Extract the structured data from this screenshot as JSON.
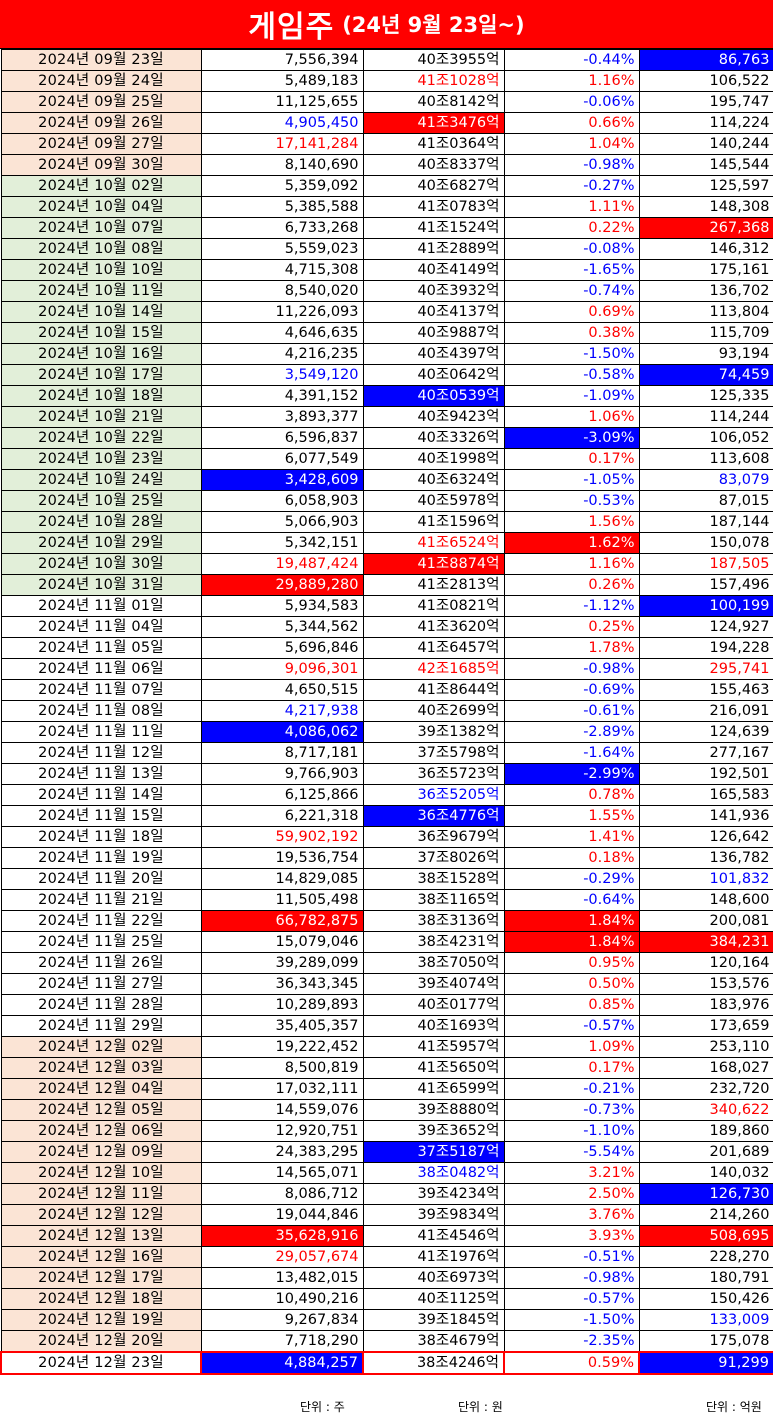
{
  "header": {
    "title": "게임주",
    "subtitle": "(24년 9월 23일~)"
  },
  "colors": {
    "red": "#ff0000",
    "blue": "#0000ff",
    "peach": "#fbe4d5",
    "green": "#e2efd9"
  },
  "rows": [
    {
      "date": "2024년 09월 23일",
      "volume": "7,556,394",
      "cap": "40조3955억",
      "change": "-0.44%",
      "amount": "86,763",
      "band": "peach",
      "styles": [
        "",
        "",
        "",
        "blue",
        "bgB"
      ]
    },
    {
      "date": "2024년 09월 24일",
      "volume": "5,489,183",
      "cap": "41조1028억",
      "change": "1.16%",
      "amount": "106,522",
      "band": "peach",
      "styles": [
        "",
        "",
        "red",
        "red",
        ""
      ]
    },
    {
      "date": "2024년 09월 25일",
      "volume": "11,125,655",
      "cap": "40조8142억",
      "change": "-0.06%",
      "amount": "195,747",
      "band": "peach",
      "styles": [
        "",
        "",
        "",
        "blue",
        ""
      ]
    },
    {
      "date": "2024년 09월 26일",
      "volume": "4,905,450",
      "cap": "41조3476억",
      "change": "0.66%",
      "amount": "114,224",
      "band": "peach",
      "styles": [
        "",
        "blue",
        "bgR",
        "red",
        ""
      ]
    },
    {
      "date": "2024년 09월 27일",
      "volume": "17,141,284",
      "cap": "41조0364억",
      "change": "1.04%",
      "amount": "140,244",
      "band": "peach",
      "styles": [
        "",
        "red",
        "",
        "red",
        ""
      ]
    },
    {
      "date": "2024년 09월 30일",
      "volume": "8,140,690",
      "cap": "40조8337억",
      "change": "-0.98%",
      "amount": "145,544",
      "band": "peach",
      "styles": [
        "",
        "",
        "",
        "blue",
        ""
      ]
    },
    {
      "date": "2024년 10월 02일",
      "volume": "5,359,092",
      "cap": "40조6827억",
      "change": "-0.27%",
      "amount": "125,597",
      "band": "green",
      "styles": [
        "",
        "",
        "",
        "blue",
        ""
      ]
    },
    {
      "date": "2024년 10월 04일",
      "volume": "5,385,588",
      "cap": "41조0783억",
      "change": "1.11%",
      "amount": "148,308",
      "band": "green",
      "styles": [
        "",
        "",
        "",
        "red",
        ""
      ]
    },
    {
      "date": "2024년 10월 07일",
      "volume": "6,733,268",
      "cap": "41조1524억",
      "change": "0.22%",
      "amount": "267,368",
      "band": "green",
      "styles": [
        "",
        "",
        "",
        "red",
        "bgR"
      ]
    },
    {
      "date": "2024년 10월 08일",
      "volume": "5,559,023",
      "cap": "41조2889억",
      "change": "-0.08%",
      "amount": "146,312",
      "band": "green",
      "styles": [
        "",
        "",
        "",
        "blue",
        ""
      ]
    },
    {
      "date": "2024년 10월 10일",
      "volume": "4,715,308",
      "cap": "40조4149억",
      "change": "-1.65%",
      "amount": "175,161",
      "band": "green",
      "styles": [
        "",
        "",
        "",
        "blue",
        ""
      ]
    },
    {
      "date": "2024년 10월 11일",
      "volume": "8,540,020",
      "cap": "40조3932억",
      "change": "-0.74%",
      "amount": "136,702",
      "band": "green",
      "styles": [
        "",
        "",
        "",
        "blue",
        ""
      ]
    },
    {
      "date": "2024년 10월 14일",
      "volume": "11,226,093",
      "cap": "40조4137억",
      "change": "0.69%",
      "amount": "113,804",
      "band": "green",
      "styles": [
        "",
        "",
        "",
        "red",
        ""
      ]
    },
    {
      "date": "2024년 10월 15일",
      "volume": "4,646,635",
      "cap": "40조9887억",
      "change": "0.38%",
      "amount": "115,709",
      "band": "green",
      "styles": [
        "",
        "",
        "",
        "red",
        ""
      ]
    },
    {
      "date": "2024년 10월 16일",
      "volume": "4,216,235",
      "cap": "40조4397억",
      "change": "-1.50%",
      "amount": "93,194",
      "band": "green",
      "styles": [
        "",
        "",
        "",
        "blue",
        ""
      ]
    },
    {
      "date": "2024년 10월 17일",
      "volume": "3,549,120",
      "cap": "40조0642억",
      "change": "-0.58%",
      "amount": "74,459",
      "band": "green",
      "styles": [
        "",
        "blue",
        "",
        "blue",
        "bgB"
      ]
    },
    {
      "date": "2024년 10월 18일",
      "volume": "4,391,152",
      "cap": "40조0539억",
      "change": "-1.09%",
      "amount": "125,335",
      "band": "green",
      "styles": [
        "",
        "",
        "bgB",
        "blue",
        ""
      ]
    },
    {
      "date": "2024년 10월 21일",
      "volume": "3,893,377",
      "cap": "40조9423억",
      "change": "1.06%",
      "amount": "114,244",
      "band": "green",
      "styles": [
        "",
        "",
        "",
        "red",
        ""
      ]
    },
    {
      "date": "2024년 10월 22일",
      "volume": "6,596,837",
      "cap": "40조3326억",
      "change": "-3.09%",
      "amount": "106,052",
      "band": "green",
      "styles": [
        "",
        "",
        "",
        "bgB",
        ""
      ]
    },
    {
      "date": "2024년 10월 23일",
      "volume": "6,077,549",
      "cap": "40조1998억",
      "change": "0.17%",
      "amount": "113,608",
      "band": "green",
      "styles": [
        "",
        "",
        "",
        "red",
        ""
      ]
    },
    {
      "date": "2024년 10월 24일",
      "volume": "3,428,609",
      "cap": "40조6324억",
      "change": "-1.05%",
      "amount": "83,079",
      "band": "green",
      "styles": [
        "",
        "bgB",
        "",
        "blue",
        "blue"
      ]
    },
    {
      "date": "2024년 10월 25일",
      "volume": "6,058,903",
      "cap": "40조5978억",
      "change": "-0.53%",
      "amount": "87,015",
      "band": "green",
      "styles": [
        "",
        "",
        "",
        "blue",
        ""
      ]
    },
    {
      "date": "2024년 10월 28일",
      "volume": "5,066,903",
      "cap": "41조1596억",
      "change": "1.56%",
      "amount": "187,144",
      "band": "green",
      "styles": [
        "",
        "",
        "",
        "red",
        ""
      ]
    },
    {
      "date": "2024년 10월 29일",
      "volume": "5,342,151",
      "cap": "41조6524억",
      "change": "1.62%",
      "amount": "150,078",
      "band": "green",
      "styles": [
        "",
        "",
        "red",
        "bgR",
        ""
      ]
    },
    {
      "date": "2024년 10월 30일",
      "volume": "19,487,424",
      "cap": "41조8874억",
      "change": "1.16%",
      "amount": "187,505",
      "band": "green",
      "styles": [
        "",
        "red",
        "bgR",
        "red",
        "red"
      ]
    },
    {
      "date": "2024년 10월 31일",
      "volume": "29,889,280",
      "cap": "41조2813억",
      "change": "0.26%",
      "amount": "157,496",
      "band": "green",
      "styles": [
        "",
        "bgR",
        "",
        "red",
        ""
      ]
    },
    {
      "date": "2024년 11월 01일",
      "volume": "5,934,583",
      "cap": "41조0821억",
      "change": "-1.12%",
      "amount": "100,199",
      "band": "white",
      "styles": [
        "",
        "",
        "",
        "blue",
        "bgB"
      ]
    },
    {
      "date": "2024년 11월 04일",
      "volume": "5,344,562",
      "cap": "41조3620억",
      "change": "0.25%",
      "amount": "124,927",
      "band": "white",
      "styles": [
        "",
        "",
        "",
        "red",
        ""
      ]
    },
    {
      "date": "2024년 11월 05일",
      "volume": "5,696,846",
      "cap": "41조6457억",
      "change": "1.78%",
      "amount": "194,228",
      "band": "white",
      "styles": [
        "",
        "",
        "",
        "red",
        ""
      ]
    },
    {
      "date": "2024년 11월 06일",
      "volume": "9,096,301",
      "cap": "42조1685억",
      "change": "-0.98%",
      "amount": "295,741",
      "band": "white",
      "styles": [
        "",
        "red",
        "red",
        "blue",
        "red"
      ]
    },
    {
      "date": "2024년 11월 07일",
      "volume": "4,650,515",
      "cap": "41조8644억",
      "change": "-0.69%",
      "amount": "155,463",
      "band": "white",
      "styles": [
        "",
        "",
        "",
        "blue",
        ""
      ]
    },
    {
      "date": "2024년 11월 08일",
      "volume": "4,217,938",
      "cap": "40조2699억",
      "change": "-0.61%",
      "amount": "216,091",
      "band": "white",
      "styles": [
        "",
        "blue",
        "",
        "blue",
        ""
      ]
    },
    {
      "date": "2024년 11월 11일",
      "volume": "4,086,062",
      "cap": "39조1382억",
      "change": "-2.89%",
      "amount": "124,639",
      "band": "white",
      "styles": [
        "",
        "bgB",
        "",
        "blue",
        ""
      ]
    },
    {
      "date": "2024년 11월 12일",
      "volume": "8,717,181",
      "cap": "37조5798억",
      "change": "-1.64%",
      "amount": "277,167",
      "band": "white",
      "styles": [
        "",
        "",
        "",
        "blue",
        ""
      ]
    },
    {
      "date": "2024년 11월 13일",
      "volume": "9,766,903",
      "cap": "36조5723억",
      "change": "-2.99%",
      "amount": "192,501",
      "band": "white",
      "styles": [
        "",
        "",
        "",
        "bgB",
        ""
      ]
    },
    {
      "date": "2024년 11월 14일",
      "volume": "6,125,866",
      "cap": "36조5205억",
      "change": "0.78%",
      "amount": "165,583",
      "band": "white",
      "styles": [
        "",
        "",
        "blue",
        "red",
        ""
      ]
    },
    {
      "date": "2024년 11월 15일",
      "volume": "6,221,318",
      "cap": "36조4776억",
      "change": "1.55%",
      "amount": "141,936",
      "band": "white",
      "styles": [
        "",
        "",
        "bgB",
        "red",
        ""
      ]
    },
    {
      "date": "2024년 11월 18일",
      "volume": "59,902,192",
      "cap": "36조9679억",
      "change": "1.41%",
      "amount": "126,642",
      "band": "white",
      "styles": [
        "",
        "red",
        "",
        "red",
        ""
      ]
    },
    {
      "date": "2024년 11월 19일",
      "volume": "19,536,754",
      "cap": "37조8026억",
      "change": "0.18%",
      "amount": "136,782",
      "band": "white",
      "styles": [
        "",
        "",
        "",
        "red",
        ""
      ]
    },
    {
      "date": "2024년 11월 20일",
      "volume": "14,829,085",
      "cap": "38조1528억",
      "change": "-0.29%",
      "amount": "101,832",
      "band": "white",
      "styles": [
        "",
        "",
        "",
        "blue",
        "blue"
      ]
    },
    {
      "date": "2024년 11월 21일",
      "volume": "11,505,498",
      "cap": "38조1165억",
      "change": "-0.64%",
      "amount": "148,600",
      "band": "white",
      "styles": [
        "",
        "",
        "",
        "blue",
        ""
      ]
    },
    {
      "date": "2024년 11월 22일",
      "volume": "66,782,875",
      "cap": "38조3136억",
      "change": "1.84%",
      "amount": "200,081",
      "band": "white",
      "styles": [
        "",
        "bgR",
        "",
        "bgR",
        ""
      ]
    },
    {
      "date": "2024년 11월 25일",
      "volume": "15,079,046",
      "cap": "38조4231억",
      "change": "1.84%",
      "amount": "384,231",
      "band": "white",
      "styles": [
        "",
        "",
        "",
        "bgR",
        "bgR"
      ]
    },
    {
      "date": "2024년 11월 26일",
      "volume": "39,289,099",
      "cap": "38조7050억",
      "change": "0.95%",
      "amount": "120,164",
      "band": "white",
      "styles": [
        "",
        "",
        "",
        "red",
        ""
      ]
    },
    {
      "date": "2024년 11월 27일",
      "volume": "36,343,345",
      "cap": "39조4074억",
      "change": "0.50%",
      "amount": "153,576",
      "band": "white",
      "styles": [
        "",
        "",
        "",
        "red",
        ""
      ]
    },
    {
      "date": "2024년 11월 28일",
      "volume": "10,289,893",
      "cap": "40조0177억",
      "change": "0.85%",
      "amount": "183,976",
      "band": "white",
      "styles": [
        "",
        "",
        "",
        "red",
        ""
      ]
    },
    {
      "date": "2024년 11월 29일",
      "volume": "35,405,357",
      "cap": "40조1693억",
      "change": "-0.57%",
      "amount": "173,659",
      "band": "white",
      "styles": [
        "",
        "",
        "",
        "blue",
        ""
      ]
    },
    {
      "date": "2024년 12월 02일",
      "volume": "19,222,452",
      "cap": "41조5957억",
      "change": "1.09%",
      "amount": "253,110",
      "band": "peach",
      "styles": [
        "",
        "",
        "",
        "red",
        ""
      ]
    },
    {
      "date": "2024년 12월 03일",
      "volume": "8,500,819",
      "cap": "41조5650억",
      "change": "0.17%",
      "amount": "168,027",
      "band": "peach",
      "styles": [
        "",
        "",
        "",
        "red",
        ""
      ]
    },
    {
      "date": "2024년 12월 04일",
      "volume": "17,032,111",
      "cap": "41조6599억",
      "change": "-0.21%",
      "amount": "232,720",
      "band": "peach",
      "styles": [
        "",
        "",
        "",
        "blue",
        ""
      ]
    },
    {
      "date": "2024년 12월 05일",
      "volume": "14,559,076",
      "cap": "39조8880억",
      "change": "-0.73%",
      "amount": "340,622",
      "band": "peach",
      "styles": [
        "",
        "",
        "",
        "blue",
        "red"
      ]
    },
    {
      "date": "2024년 12월 06일",
      "volume": "12,920,751",
      "cap": "39조3652억",
      "change": "-1.10%",
      "amount": "189,860",
      "band": "peach",
      "styles": [
        "",
        "",
        "",
        "blue",
        ""
      ]
    },
    {
      "date": "2024년 12월 09일",
      "volume": "24,383,295",
      "cap": "37조5187억",
      "change": "-5.54%",
      "amount": "201,689",
      "band": "peach",
      "styles": [
        "",
        "",
        "bgB",
        "blue",
        ""
      ]
    },
    {
      "date": "2024년 12월 10일",
      "volume": "14,565,071",
      "cap": "38조0482억",
      "change": "3.21%",
      "amount": "140,032",
      "band": "peach",
      "styles": [
        "",
        "",
        "blue",
        "red",
        ""
      ]
    },
    {
      "date": "2024년 12월 11일",
      "volume": "8,086,712",
      "cap": "39조4234억",
      "change": "2.50%",
      "amount": "126,730",
      "band": "peach",
      "styles": [
        "",
        "",
        "",
        "red",
        "bgB"
      ]
    },
    {
      "date": "2024년 12월 12일",
      "volume": "19,044,846",
      "cap": "39조9834억",
      "change": "3.76%",
      "amount": "214,260",
      "band": "peach",
      "styles": [
        "",
        "",
        "",
        "red",
        ""
      ]
    },
    {
      "date": "2024년 12월 13일",
      "volume": "35,628,916",
      "cap": "41조4546억",
      "change": "3.93%",
      "amount": "508,695",
      "band": "peach",
      "styles": [
        "",
        "bgR",
        "",
        "red",
        "bgR"
      ]
    },
    {
      "date": "2024년 12월 16일",
      "volume": "29,057,674",
      "cap": "41조1976억",
      "change": "-0.51%",
      "amount": "228,270",
      "band": "peach",
      "styles": [
        "",
        "red",
        "",
        "blue",
        ""
      ]
    },
    {
      "date": "2024년 12월 17일",
      "volume": "13,482,015",
      "cap": "40조6973억",
      "change": "-0.98%",
      "amount": "180,791",
      "band": "peach",
      "styles": [
        "",
        "",
        "",
        "blue",
        ""
      ]
    },
    {
      "date": "2024년 12월 18일",
      "volume": "10,490,216",
      "cap": "40조1125억",
      "change": "-0.57%",
      "amount": "150,426",
      "band": "peach",
      "styles": [
        "",
        "",
        "",
        "blue",
        ""
      ]
    },
    {
      "date": "2024년 12월 19일",
      "volume": "9,267,834",
      "cap": "39조1845억",
      "change": "-1.50%",
      "amount": "133,009",
      "band": "peach",
      "styles": [
        "",
        "",
        "",
        "blue",
        "blue"
      ]
    },
    {
      "date": "2024년 12월 20일",
      "volume": "7,718,290",
      "cap": "38조4679억",
      "change": "-2.35%",
      "amount": "175,078",
      "band": "peach",
      "styles": [
        "",
        "",
        "",
        "blue",
        ""
      ]
    },
    {
      "date": "2024년 12월 23일",
      "volume": "4,884,257",
      "cap": "38조4246억",
      "change": "0.59%",
      "amount": "91,299",
      "band": "white",
      "styles": [
        "",
        "bgB",
        "",
        "red",
        "bgB"
      ]
    }
  ],
  "footer": {
    "unit_volume": "단위 : 주",
    "unit_cap": "단위 : 원",
    "unit_amount": "단위 : 억원"
  }
}
